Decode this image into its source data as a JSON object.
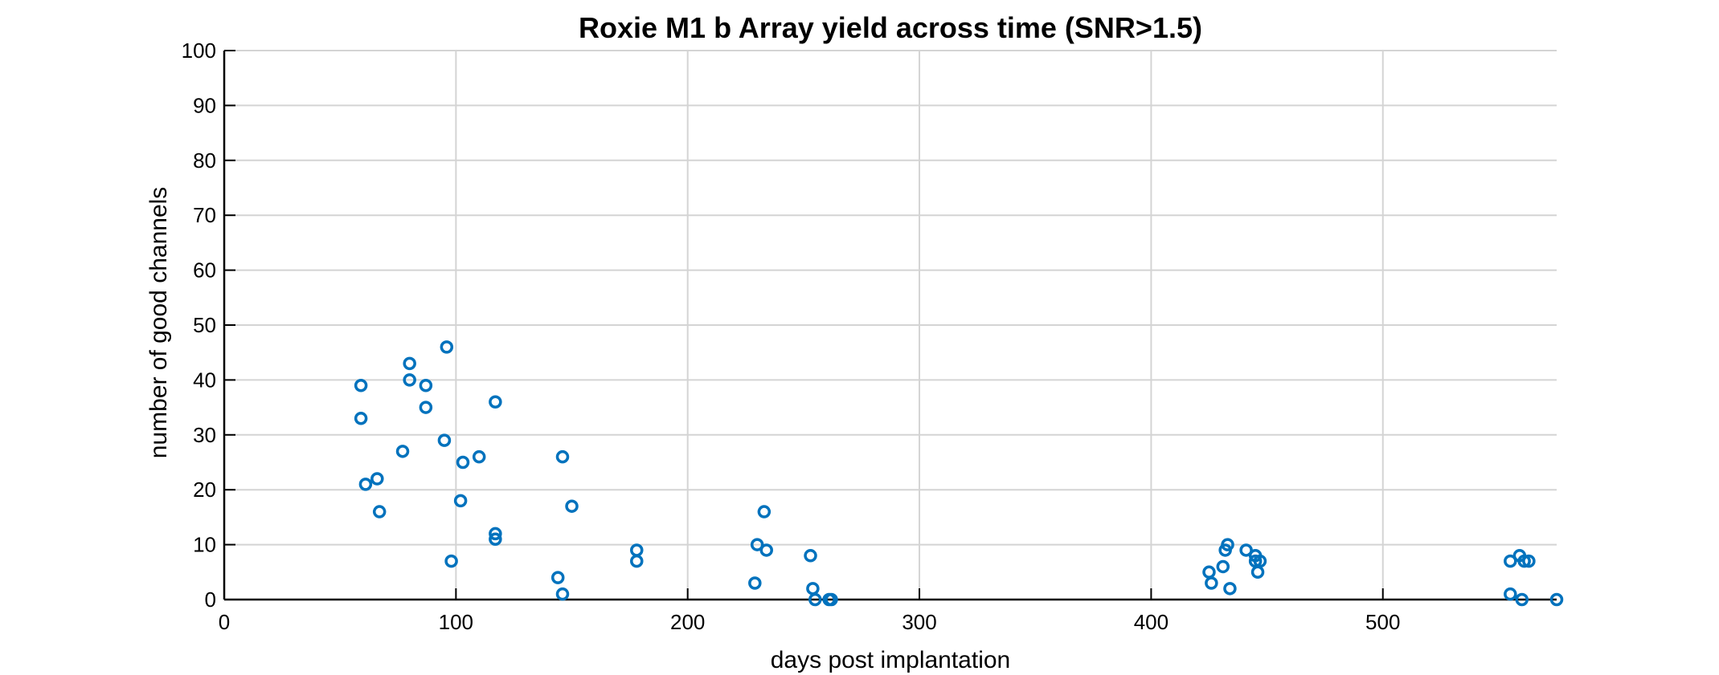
{
  "chart_data": {
    "type": "scatter",
    "title": "Roxie M1 b Array yield across time (SNR>1.5)",
    "xlabel": "days post implantation",
    "ylabel": "number of good channels",
    "xlim": [
      0,
      575
    ],
    "ylim": [
      0,
      100
    ],
    "xticks": [
      0,
      100,
      200,
      300,
      400,
      500
    ],
    "yticks": [
      0,
      10,
      20,
      30,
      40,
      50,
      60,
      70,
      80,
      90,
      100
    ],
    "grid": true,
    "marker": "circle",
    "color": "#0072BD",
    "series": [
      {
        "points": [
          [
            59,
            39
          ],
          [
            59,
            33
          ],
          [
            61,
            21
          ],
          [
            66,
            22
          ],
          [
            67,
            16
          ],
          [
            77,
            27
          ],
          [
            80,
            43
          ],
          [
            80,
            40
          ],
          [
            87,
            39
          ],
          [
            87,
            35
          ],
          [
            95,
            29
          ],
          [
            96,
            46
          ],
          [
            98,
            7
          ],
          [
            102,
            18
          ],
          [
            103,
            25
          ],
          [
            110,
            26
          ],
          [
            117,
            36
          ],
          [
            117,
            12
          ],
          [
            117,
            11
          ],
          [
            144,
            4
          ],
          [
            146,
            1
          ],
          [
            146,
            26
          ],
          [
            150,
            17
          ],
          [
            178,
            9
          ],
          [
            178,
            7
          ],
          [
            229,
            3
          ],
          [
            230,
            10
          ],
          [
            233,
            16
          ],
          [
            234,
            9
          ],
          [
            253,
            8
          ],
          [
            254,
            2
          ],
          [
            255,
            0
          ],
          [
            261,
            0
          ],
          [
            262,
            0
          ],
          [
            425,
            5
          ],
          [
            426,
            3
          ],
          [
            431,
            6
          ],
          [
            432,
            9
          ],
          [
            433,
            10
          ],
          [
            434,
            2
          ],
          [
            441,
            9
          ],
          [
            445,
            8
          ],
          [
            445,
            7
          ],
          [
            446,
            5
          ],
          [
            447,
            7
          ],
          [
            555,
            7
          ],
          [
            555,
            1
          ],
          [
            559,
            8
          ],
          [
            560,
            0
          ],
          [
            561,
            7
          ],
          [
            563,
            7
          ],
          [
            575,
            0
          ]
        ]
      }
    ]
  }
}
